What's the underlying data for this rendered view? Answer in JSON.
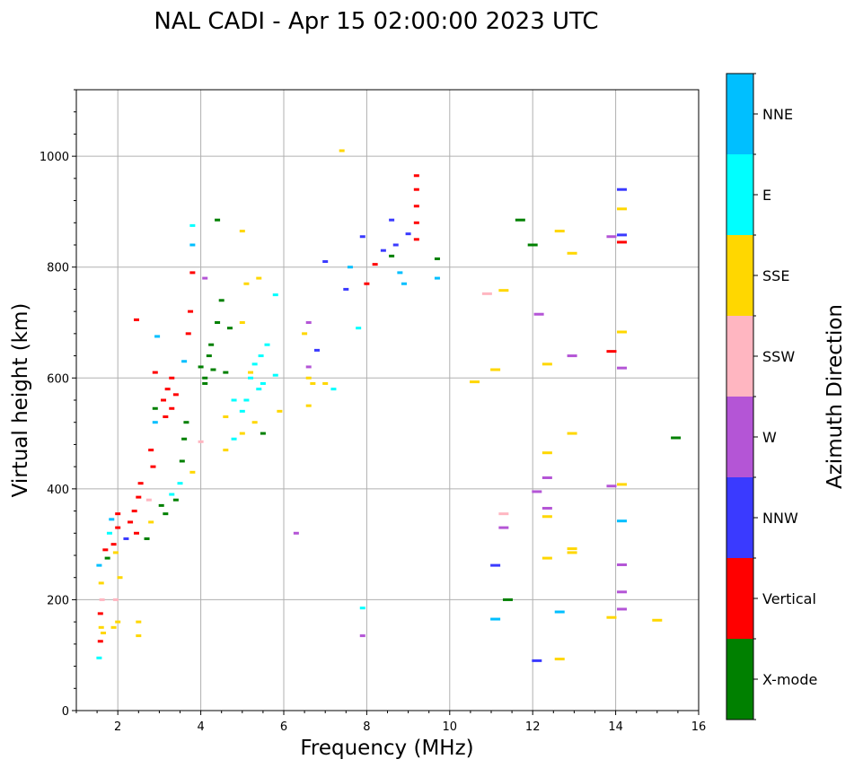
{
  "chart_data": {
    "type": "scatter",
    "title": "NAL CADI - Apr 15 02:00:00 2023 UTC",
    "xlabel": "Frequency (MHz)",
    "ylabel": "Virtual height (km)",
    "xlim": [
      1,
      16
    ],
    "ylim": [
      0,
      1120
    ],
    "xticks": [
      2,
      4,
      6,
      8,
      10,
      12,
      14,
      16
    ],
    "yticks": [
      0,
      200,
      400,
      600,
      800,
      1000
    ],
    "grid": true,
    "colorbar": {
      "label": "Azimuth Direction",
      "categories": [
        {
          "name": "X-mode",
          "color": "#008000"
        },
        {
          "name": "Vertical",
          "color": "#ff0000"
        },
        {
          "name": "NNW",
          "color": "#3a3aff"
        },
        {
          "name": "W",
          "color": "#b455d6"
        },
        {
          "name": "SSW",
          "color": "#ffb6c1"
        },
        {
          "name": "SSE",
          "color": "#ffd700"
        },
        {
          "name": "E",
          "color": "#00ffff"
        },
        {
          "name": "NNE",
          "color": "#00bfff"
        }
      ]
    },
    "points": [
      {
        "f": 1.55,
        "h": 262,
        "c": "NNE"
      },
      {
        "f": 1.6,
        "h": 230,
        "c": "SSE"
      },
      {
        "f": 1.62,
        "h": 200,
        "c": "SSW"
      },
      {
        "f": 1.58,
        "h": 175,
        "c": "Vertical"
      },
      {
        "f": 1.6,
        "h": 150,
        "c": "SSE"
      },
      {
        "f": 1.65,
        "h": 140,
        "c": "SSE"
      },
      {
        "f": 1.58,
        "h": 125,
        "c": "Vertical"
      },
      {
        "f": 1.55,
        "h": 95,
        "c": "E"
      },
      {
        "f": 1.7,
        "h": 290,
        "c": "Vertical"
      },
      {
        "f": 1.75,
        "h": 275,
        "c": "X-mode"
      },
      {
        "f": 1.8,
        "h": 320,
        "c": "E"
      },
      {
        "f": 1.85,
        "h": 345,
        "c": "NNE"
      },
      {
        "f": 1.9,
        "h": 300,
        "c": "Vertical"
      },
      {
        "f": 1.95,
        "h": 285,
        "c": "SSE"
      },
      {
        "f": 2.0,
        "h": 330,
        "c": "Vertical"
      },
      {
        "f": 2.0,
        "h": 355,
        "c": "Vertical"
      },
      {
        "f": 1.9,
        "h": 150,
        "c": "SSE"
      },
      {
        "f": 2.0,
        "h": 160,
        "c": "SSE"
      },
      {
        "f": 1.95,
        "h": 200,
        "c": "SSW"
      },
      {
        "f": 2.05,
        "h": 240,
        "c": "SSE"
      },
      {
        "f": 2.2,
        "h": 310,
        "c": "NNW"
      },
      {
        "f": 2.3,
        "h": 340,
        "c": "Vertical"
      },
      {
        "f": 2.4,
        "h": 360,
        "c": "Vertical"
      },
      {
        "f": 2.5,
        "h": 385,
        "c": "Vertical"
      },
      {
        "f": 2.45,
        "h": 320,
        "c": "Vertical"
      },
      {
        "f": 2.55,
        "h": 410,
        "c": "Vertical"
      },
      {
        "f": 2.5,
        "h": 135,
        "c": "SSE"
      },
      {
        "f": 2.5,
        "h": 160,
        "c": "SSE"
      },
      {
        "f": 2.45,
        "h": 705,
        "c": "Vertical"
      },
      {
        "f": 2.7,
        "h": 310,
        "c": "X-mode"
      },
      {
        "f": 2.8,
        "h": 340,
        "c": "SSE"
      },
      {
        "f": 2.75,
        "h": 380,
        "c": "SSW"
      },
      {
        "f": 2.85,
        "h": 440,
        "c": "Vertical"
      },
      {
        "f": 2.8,
        "h": 470,
        "c": "Vertical"
      },
      {
        "f": 2.9,
        "h": 520,
        "c": "NNE"
      },
      {
        "f": 2.9,
        "h": 545,
        "c": "X-mode"
      },
      {
        "f": 2.9,
        "h": 610,
        "c": "Vertical"
      },
      {
        "f": 2.95,
        "h": 675,
        "c": "NNE"
      },
      {
        "f": 3.1,
        "h": 560,
        "c": "Vertical"
      },
      {
        "f": 3.15,
        "h": 530,
        "c": "Vertical"
      },
      {
        "f": 3.2,
        "h": 580,
        "c": "Vertical"
      },
      {
        "f": 3.3,
        "h": 600,
        "c": "Vertical"
      },
      {
        "f": 3.3,
        "h": 545,
        "c": "Vertical"
      },
      {
        "f": 3.4,
        "h": 570,
        "c": "Vertical"
      },
      {
        "f": 3.05,
        "h": 370,
        "c": "X-mode"
      },
      {
        "f": 3.15,
        "h": 355,
        "c": "X-mode"
      },
      {
        "f": 3.3,
        "h": 390,
        "c": "E"
      },
      {
        "f": 3.4,
        "h": 380,
        "c": "X-mode"
      },
      {
        "f": 3.5,
        "h": 410,
        "c": "E"
      },
      {
        "f": 3.55,
        "h": 450,
        "c": "X-mode"
      },
      {
        "f": 3.6,
        "h": 490,
        "c": "X-mode"
      },
      {
        "f": 3.65,
        "h": 520,
        "c": "X-mode"
      },
      {
        "f": 3.6,
        "h": 630,
        "c": "NNE"
      },
      {
        "f": 3.7,
        "h": 680,
        "c": "Vertical"
      },
      {
        "f": 3.75,
        "h": 720,
        "c": "Vertical"
      },
      {
        "f": 3.8,
        "h": 790,
        "c": "Vertical"
      },
      {
        "f": 3.8,
        "h": 840,
        "c": "NNE"
      },
      {
        "f": 3.8,
        "h": 875,
        "c": "E"
      },
      {
        "f": 3.8,
        "h": 430,
        "c": "SSE"
      },
      {
        "f": 4.0,
        "h": 620,
        "c": "X-mode"
      },
      {
        "f": 4.1,
        "h": 600,
        "c": "X-mode"
      },
      {
        "f": 4.2,
        "h": 640,
        "c": "X-mode"
      },
      {
        "f": 4.25,
        "h": 660,
        "c": "X-mode"
      },
      {
        "f": 4.3,
        "h": 615,
        "c": "X-mode"
      },
      {
        "f": 4.1,
        "h": 590,
        "c": "X-mode"
      },
      {
        "f": 4.4,
        "h": 700,
        "c": "X-mode"
      },
      {
        "f": 4.5,
        "h": 740,
        "c": "X-mode"
      },
      {
        "f": 4.4,
        "h": 885,
        "c": "X-mode"
      },
      {
        "f": 4.1,
        "h": 780,
        "c": "W"
      },
      {
        "f": 4.0,
        "h": 485,
        "c": "SSW"
      },
      {
        "f": 4.6,
        "h": 610,
        "c": "X-mode"
      },
      {
        "f": 4.7,
        "h": 690,
        "c": "X-mode"
      },
      {
        "f": 4.6,
        "h": 530,
        "c": "SSE"
      },
      {
        "f": 4.6,
        "h": 470,
        "c": "SSE"
      },
      {
        "f": 4.8,
        "h": 490,
        "c": "E"
      },
      {
        "f": 5.0,
        "h": 500,
        "c": "SSE"
      },
      {
        "f": 5.0,
        "h": 540,
        "c": "E"
      },
      {
        "f": 5.1,
        "h": 560,
        "c": "E"
      },
      {
        "f": 5.2,
        "h": 600,
        "c": "E"
      },
      {
        "f": 5.3,
        "h": 625,
        "c": "E"
      },
      {
        "f": 5.4,
        "h": 580,
        "c": "E"
      },
      {
        "f": 5.5,
        "h": 590,
        "c": "E"
      },
      {
        "f": 5.45,
        "h": 640,
        "c": "E"
      },
      {
        "f": 5.6,
        "h": 660,
        "c": "E"
      },
      {
        "f": 5.3,
        "h": 520,
        "c": "SSE"
      },
      {
        "f": 5.5,
        "h": 500,
        "c": "X-mode"
      },
      {
        "f": 5.2,
        "h": 610,
        "c": "SSE"
      },
      {
        "f": 4.8,
        "h": 560,
        "c": "E"
      },
      {
        "f": 5.0,
        "h": 700,
        "c": "SSE"
      },
      {
        "f": 5.1,
        "h": 770,
        "c": "SSE"
      },
      {
        "f": 5.0,
        "h": 865,
        "c": "SSE"
      },
      {
        "f": 5.4,
        "h": 780,
        "c": "SSE"
      },
      {
        "f": 5.8,
        "h": 750,
        "c": "E"
      },
      {
        "f": 5.8,
        "h": 605,
        "c": "E"
      },
      {
        "f": 5.9,
        "h": 540,
        "c": "SSE"
      },
      {
        "f": 6.3,
        "h": 320,
        "c": "W"
      },
      {
        "f": 6.5,
        "h": 680,
        "c": "SSE"
      },
      {
        "f": 6.6,
        "h": 700,
        "c": "W"
      },
      {
        "f": 6.6,
        "h": 620,
        "c": "W"
      },
      {
        "f": 6.6,
        "h": 600,
        "c": "SSE"
      },
      {
        "f": 6.7,
        "h": 590,
        "c": "SSE"
      },
      {
        "f": 6.6,
        "h": 550,
        "c": "SSE"
      },
      {
        "f": 6.8,
        "h": 650,
        "c": "NNW"
      },
      {
        "f": 7.0,
        "h": 590,
        "c": "SSE"
      },
      {
        "f": 7.2,
        "h": 580,
        "c": "E"
      },
      {
        "f": 7.4,
        "h": 1010,
        "c": "SSE"
      },
      {
        "f": 7.0,
        "h": 810,
        "c": "NNW"
      },
      {
        "f": 7.5,
        "h": 760,
        "c": "NNW"
      },
      {
        "f": 7.6,
        "h": 800,
        "c": "NNE"
      },
      {
        "f": 7.8,
        "h": 690,
        "c": "E"
      },
      {
        "f": 7.9,
        "h": 135,
        "c": "W"
      },
      {
        "f": 7.9,
        "h": 185,
        "c": "E"
      },
      {
        "f": 7.9,
        "h": 855,
        "c": "NNW"
      },
      {
        "f": 8.0,
        "h": 770,
        "c": "Vertical"
      },
      {
        "f": 8.2,
        "h": 805,
        "c": "Vertical"
      },
      {
        "f": 8.4,
        "h": 830,
        "c": "NNW"
      },
      {
        "f": 8.6,
        "h": 820,
        "c": "X-mode"
      },
      {
        "f": 8.7,
        "h": 840,
        "c": "NNW"
      },
      {
        "f": 8.6,
        "h": 885,
        "c": "NNW"
      },
      {
        "f": 8.8,
        "h": 790,
        "c": "NNE"
      },
      {
        "f": 8.9,
        "h": 770,
        "c": "NNE"
      },
      {
        "f": 9.0,
        "h": 860,
        "c": "NNW"
      },
      {
        "f": 9.2,
        "h": 965,
        "c": "Vertical"
      },
      {
        "f": 9.2,
        "h": 940,
        "c": "Vertical"
      },
      {
        "f": 9.2,
        "h": 910,
        "c": "Vertical"
      },
      {
        "f": 9.2,
        "h": 880,
        "c": "Vertical"
      },
      {
        "f": 9.2,
        "h": 850,
        "c": "Vertical"
      },
      {
        "f": 9.7,
        "h": 815,
        "c": "X-mode"
      },
      {
        "f": 9.7,
        "h": 780,
        "c": "NNE"
      },
      {
        "f": 10.6,
        "h": 593,
        "c": "SSE"
      },
      {
        "f": 10.9,
        "h": 752,
        "c": "SSW"
      },
      {
        "f": 11.1,
        "h": 615,
        "c": "SSE"
      },
      {
        "f": 11.3,
        "h": 758,
        "c": "SSE"
      },
      {
        "f": 11.1,
        "h": 262,
        "c": "NNW"
      },
      {
        "f": 11.1,
        "h": 165,
        "c": "NNE"
      },
      {
        "f": 11.3,
        "h": 330,
        "c": "W"
      },
      {
        "f": 11.3,
        "h": 355,
        "c": "SSW"
      },
      {
        "f": 11.4,
        "h": 200,
        "c": "X-mode"
      },
      {
        "f": 11.7,
        "h": 885,
        "c": "X-mode"
      },
      {
        "f": 12.0,
        "h": 840,
        "c": "X-mode"
      },
      {
        "f": 12.15,
        "h": 715,
        "c": "W"
      },
      {
        "f": 12.1,
        "h": 395,
        "c": "W"
      },
      {
        "f": 12.1,
        "h": 90,
        "c": "NNW"
      },
      {
        "f": 12.35,
        "h": 625,
        "c": "SSE"
      },
      {
        "f": 12.35,
        "h": 465,
        "c": "SSE"
      },
      {
        "f": 12.35,
        "h": 420,
        "c": "W"
      },
      {
        "f": 12.35,
        "h": 365,
        "c": "W"
      },
      {
        "f": 12.35,
        "h": 350,
        "c": "SSE"
      },
      {
        "f": 12.35,
        "h": 275,
        "c": "SSE"
      },
      {
        "f": 12.65,
        "h": 865,
        "c": "SSE"
      },
      {
        "f": 12.65,
        "h": 178,
        "c": "NNE"
      },
      {
        "f": 12.65,
        "h": 93,
        "c": "SSE"
      },
      {
        "f": 12.95,
        "h": 825,
        "c": "SSE"
      },
      {
        "f": 12.95,
        "h": 640,
        "c": "W"
      },
      {
        "f": 12.95,
        "h": 500,
        "c": "SSE"
      },
      {
        "f": 12.95,
        "h": 292,
        "c": "SSE"
      },
      {
        "f": 12.95,
        "h": 285,
        "c": "SSE"
      },
      {
        "f": 13.9,
        "h": 855,
        "c": "W"
      },
      {
        "f": 13.9,
        "h": 648,
        "c": "Vertical"
      },
      {
        "f": 13.9,
        "h": 405,
        "c": "W"
      },
      {
        "f": 13.9,
        "h": 168,
        "c": "SSE"
      },
      {
        "f": 14.15,
        "h": 940,
        "c": "NNW"
      },
      {
        "f": 14.15,
        "h": 905,
        "c": "SSE"
      },
      {
        "f": 14.15,
        "h": 858,
        "c": "NNW"
      },
      {
        "f": 14.15,
        "h": 845,
        "c": "Vertical"
      },
      {
        "f": 14.15,
        "h": 683,
        "c": "SSE"
      },
      {
        "f": 14.15,
        "h": 618,
        "c": "W"
      },
      {
        "f": 14.15,
        "h": 408,
        "c": "SSE"
      },
      {
        "f": 14.15,
        "h": 342,
        "c": "NNE"
      },
      {
        "f": 14.15,
        "h": 263,
        "c": "W"
      },
      {
        "f": 14.15,
        "h": 214,
        "c": "W"
      },
      {
        "f": 14.15,
        "h": 183,
        "c": "W"
      },
      {
        "f": 15.0,
        "h": 163,
        "c": "SSE"
      },
      {
        "f": 15.45,
        "h": 492,
        "c": "X-mode"
      }
    ]
  }
}
